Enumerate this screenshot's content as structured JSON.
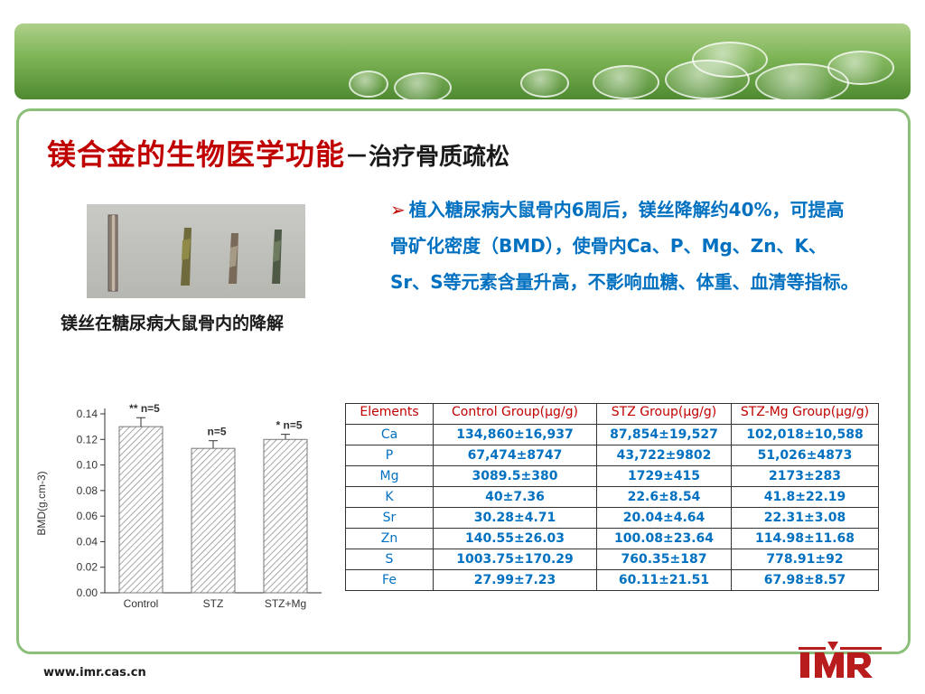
{
  "title": {
    "main": "镁合金的生物医学功能",
    "sub": "－治疗骨质疏松"
  },
  "photo_caption": "镁丝在糖尿病大鼠骨内的降解",
  "bullet": "植入糖尿病大鼠骨内6周后，镁丝降解约40%，可提高骨矿化密度（BMD），使骨内Ca、P、Mg、Zn、K、Sr、S等元素含量升高，不影响血糖、体重、血清等指标。",
  "chart_data": {
    "type": "bar",
    "ylabel": "BMD(g.cm-3)",
    "categories": [
      "Control",
      "STZ",
      "STZ+Mg"
    ],
    "values": [
      0.13,
      0.113,
      0.12
    ],
    "errors": [
      0.007,
      0.006,
      0.004
    ],
    "annotations": [
      "** n=5",
      "n=5",
      "* n=5"
    ],
    "ylim": [
      0,
      0.14
    ],
    "yticks": [
      "0.00",
      "0.02",
      "0.04",
      "0.06",
      "0.08",
      "0.10",
      "0.12",
      "0.14"
    ],
    "colors": {
      "bar_hatch": "#8a8a8a",
      "axis": "#333333"
    }
  },
  "table": {
    "headers": [
      "Elements",
      "Control Group(μg/g)",
      "STZ Group(μg/g)",
      "STZ-Mg Group(μg/g)"
    ],
    "rows": [
      [
        "Ca",
        "134,860±16,937",
        "87,854±19,527",
        "102,018±10,588"
      ],
      [
        "P",
        "67,474±8747",
        "43,722±9802",
        "51,026±4873"
      ],
      [
        "Mg",
        "3089.5±380",
        "1729±415",
        "2173±283"
      ],
      [
        "K",
        "40±7.36",
        "22.6±8.54",
        "41.8±22.19"
      ],
      [
        "Sr",
        "30.28±4.71",
        "20.04±4.64",
        "22.31±3.08"
      ],
      [
        "Zn",
        "140.55±26.03",
        "100.08±23.64",
        "114.98±11.68"
      ],
      [
        "S",
        "1003.75±170.29",
        "760.35±187",
        "778.91±92"
      ],
      [
        "Fe",
        "27.99±7.23",
        "60.11±21.51",
        "67.98±8.57"
      ]
    ]
  },
  "footer": {
    "url": "www.imr.cas.cn",
    "logo_text": "IMR"
  },
  "colors": {
    "title_red": "#c00000",
    "text_blue": "#0070c0",
    "frame_green": "#8cc07a",
    "logo_red": "#b81c1c"
  }
}
